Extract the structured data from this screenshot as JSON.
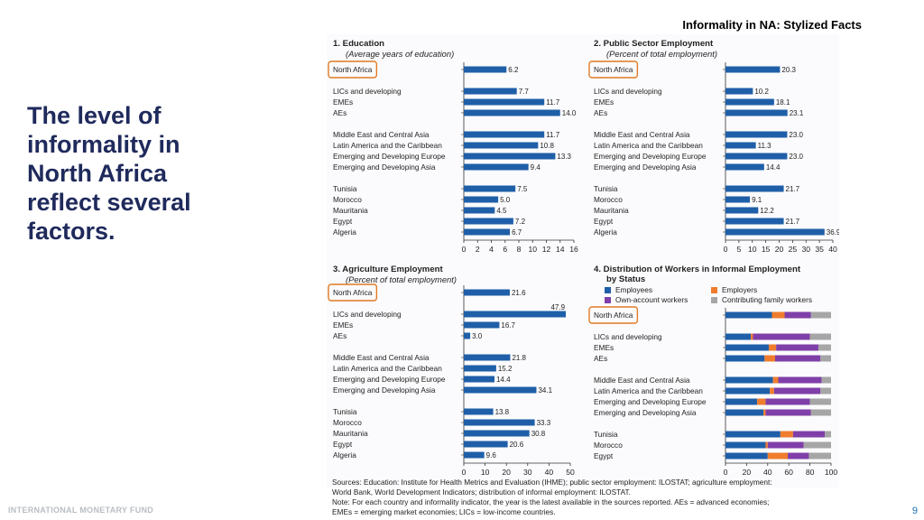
{
  "header": {
    "title": "Informality in NA: Stylized Facts"
  },
  "headline": {
    "line1": "The level of",
    "line2": "informality in",
    "line3": "North Africa",
    "line4": "reflect several",
    "line5": "factors."
  },
  "footer": {
    "organization": "INTERNATIONAL MONETARY FUND",
    "page_number": "9"
  },
  "colors": {
    "bar": "#1f5fa8",
    "employees": "#1f5fa8",
    "employers": "#ef7d2d",
    "own_account": "#7f3fa8",
    "contributing": "#a6a6a6",
    "highlight": "#e07b24",
    "headline": "#1f2a5c",
    "page_number": "#1a6db5"
  },
  "sources": {
    "line1": "Sources: Education: Institute for Health Metrics and Evaluation (IHME); public sector employment: ILOSTAT; agriculture employment:",
    "line2": "World Bank, World Development Indicators; distribution of informal employment: ILOSTAT.",
    "line3": "Note: For each country and informality indicator, the year is the latest available in the sources reported. AEs = advanced economies;",
    "line4": "EMEs = emerging market economies; LICs = low-income countries."
  },
  "chart_data": [
    {
      "type": "bar",
      "orientation": "horizontal",
      "title": "1. Education",
      "subtitle": "(Average years of education)",
      "categories": [
        "North Africa",
        "LICs and developing",
        "EMEs",
        "AEs",
        "Middle East and Central Asia",
        "Latin America and the Caribbean",
        "Emerging and Developing Europe",
        "Emerging and Developing Asia",
        "Tunisia",
        "Morocco",
        "Mauritania",
        "Egypt",
        "Algeria"
      ],
      "groups": [
        1,
        3,
        4,
        5
      ],
      "values": [
        6.2,
        7.7,
        11.7,
        14.0,
        11.7,
        10.8,
        13.3,
        9.4,
        7.5,
        5.0,
        4.5,
        7.2,
        6.7
      ],
      "labels": [
        "6.2",
        "7.7",
        "11.7",
        "14.0",
        "11.7",
        "10.8",
        "13.3",
        "9.4",
        "7.5",
        "5.0",
        "4.5",
        "7.2",
        "6.7"
      ],
      "xlim": [
        0,
        16
      ],
      "ticks": [
        "0",
        "2",
        "4",
        "6",
        "8",
        "10",
        "12",
        "14",
        "16"
      ],
      "highlight": "North Africa"
    },
    {
      "type": "bar",
      "orientation": "horizontal",
      "title": "2. Public Sector Employment",
      "subtitle": "(Percent of total employment)",
      "categories": [
        "North Africa",
        "LICs and developing",
        "EMEs",
        "AEs",
        "Middle East and Central Asia",
        "Latin America and the Caribbean",
        "Emerging and Developing Europe",
        "Emerging and Developing Asia",
        "Tunisia",
        "Morocco",
        "Mauritania",
        "Egypt",
        "Algeria"
      ],
      "groups": [
        1,
        3,
        4,
        5
      ],
      "values": [
        20.3,
        10.2,
        18.1,
        23.1,
        23.0,
        11.3,
        23.0,
        14.4,
        21.7,
        9.1,
        12.2,
        21.7,
        36.9
      ],
      "labels": [
        "20.3",
        "10.2",
        "18.1",
        "23.1",
        "23.0",
        "11.3",
        "23.0",
        "14.4",
        "21.7",
        "9.1",
        "12.2",
        "21.7",
        "36.9"
      ],
      "xlim": [
        0,
        40
      ],
      "ticks": [
        "0",
        "5",
        "10",
        "15",
        "20",
        "25",
        "30",
        "35",
        "40"
      ],
      "highlight": "North Africa"
    },
    {
      "type": "bar",
      "orientation": "horizontal",
      "title": "3. Agriculture Employment",
      "subtitle": "(Percent of total employment)",
      "categories": [
        "North Africa",
        "LICs and developing",
        "EMEs",
        "AEs",
        "Middle East and Central Asia",
        "Latin America and the Caribbean",
        "Emerging and Developing Europe",
        "Emerging and Developing Asia",
        "Tunisia",
        "Morocco",
        "Mauritania",
        "Egypt",
        "Algeria"
      ],
      "groups": [
        1,
        3,
        4,
        5
      ],
      "values": [
        21.6,
        47.9,
        16.7,
        3.0,
        21.8,
        15.2,
        14.4,
        34.1,
        13.8,
        33.3,
        30.8,
        20.6,
        9.6
      ],
      "labels": [
        "21.6",
        "47.9",
        "16.7",
        "3.0",
        "21.8",
        "15.2",
        "14.4",
        "34.1",
        "13.8",
        "33.3",
        "30.8",
        "20.6",
        "9.6"
      ],
      "xlim": [
        0,
        50
      ],
      "ticks": [
        "0",
        "10",
        "20",
        "30",
        "40",
        "50"
      ],
      "highlight": "North Africa"
    },
    {
      "type": "bar",
      "orientation": "horizontal",
      "stacked": true,
      "title": "4. Distribution of Workers in Informal Employment",
      "title_line2": "by Status",
      "legend": [
        "Employees",
        "Employers",
        "Own-account workers",
        "Contributing family workers"
      ],
      "categories": [
        "North Africa",
        "LICs and developing",
        "EMEs",
        "AEs",
        "Middle East and Central Asia",
        "Latin America and the Caribbean",
        "Emerging and Developing Europe",
        "Emerging and Developing Asia",
        "Tunisia",
        "Morocco",
        "Egypt"
      ],
      "groups": [
        1,
        3,
        4,
        3
      ],
      "series": [
        {
          "name": "Employees",
          "values": [
            44,
            24,
            41,
            37,
            45,
            42,
            30,
            36,
            52,
            38,
            40
          ]
        },
        {
          "name": "Employers",
          "values": [
            12,
            2,
            7,
            10,
            5,
            4,
            8,
            2,
            12,
            2,
            19
          ]
        },
        {
          "name": "Own-account workers",
          "values": [
            25,
            54,
            40,
            43,
            41,
            44,
            42,
            43,
            30,
            34,
            20
          ]
        },
        {
          "name": "Contributing family workers",
          "values": [
            19,
            20,
            12,
            10,
            9,
            10,
            20,
            19,
            6,
            26,
            21
          ]
        }
      ],
      "xlim": [
        0,
        100
      ],
      "ticks": [
        "0",
        "20",
        "40",
        "60",
        "80",
        "100"
      ],
      "highlight": "North Africa"
    }
  ]
}
